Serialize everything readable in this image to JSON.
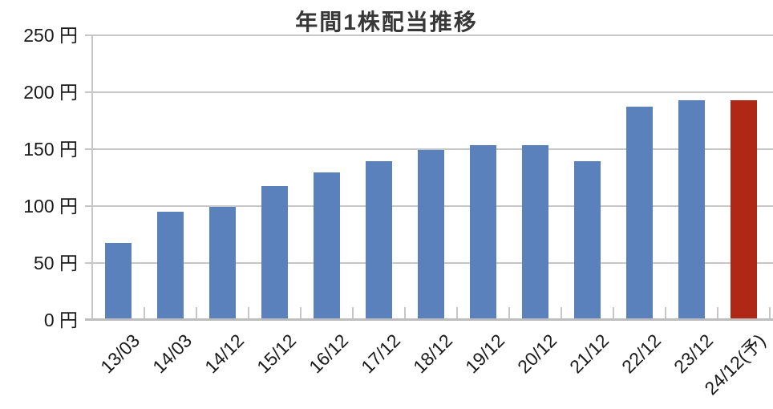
{
  "chart_data": {
    "type": "bar",
    "title": "年間1株配当推移",
    "unit": "円",
    "categories": [
      "13/03",
      "14/03",
      "14/12",
      "15/12",
      "16/12",
      "17/12",
      "18/12",
      "19/12",
      "20/12",
      "21/12",
      "22/12",
      "23/12",
      "24/12(予)"
    ],
    "values": [
      68,
      96,
      100,
      118,
      130,
      140,
      150,
      154,
      154,
      140,
      188,
      194,
      194
    ],
    "forecast_index": 12,
    "ylim": [
      0,
      250
    ],
    "ytick_step": 50,
    "yticks": [
      0,
      50,
      100,
      150,
      200,
      250
    ],
    "ytick_labels": [
      "0 円",
      "50 円",
      "100 円",
      "150 円",
      "200 円",
      "250 円"
    ],
    "legend_position": "none",
    "grid": true,
    "colors": {
      "bar": "#5a81bc",
      "bar_forecast": "#af2816",
      "gridline": "#c7c7c7",
      "axis_line": "#bdbdbd",
      "tick_label": "#1a1a1a",
      "title": "#383838"
    }
  }
}
